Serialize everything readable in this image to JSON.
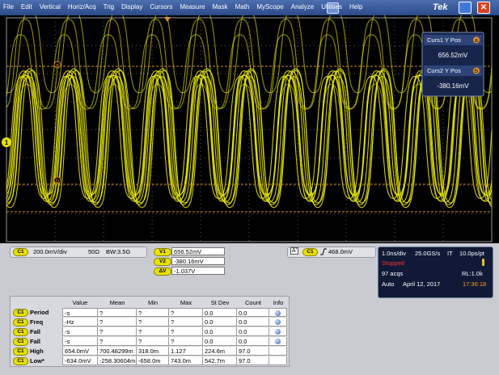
{
  "menu": {
    "items": [
      "File",
      "Edit",
      "Vertical",
      "Horiz/Acq",
      "Trig",
      "Display",
      "Cursors",
      "Measure",
      "Mask",
      "Math",
      "MyScope",
      "Analyze",
      "Utilities",
      "Help"
    ],
    "brand": "Tek"
  },
  "display": {
    "cursor1_marker": "a",
    "cursor2_marker": "b",
    "channel_marker": "1",
    "readout": [
      {
        "label": "Curs1 Y Pos",
        "badge": "a",
        "value": "656.52mV"
      },
      {
        "label": "Curs2 Y Pos",
        "badge": "b",
        "value": "-380.16mV"
      }
    ]
  },
  "channel": {
    "source": "C1",
    "scale": "200.0mV/div",
    "termination": "50Ω",
    "bandwidth": "BW:3.5G"
  },
  "cursors": [
    {
      "label": "V1",
      "value": "656.52mV"
    },
    {
      "label": "V2",
      "value": "-380.16mV"
    },
    {
      "label": "ΔV",
      "value": "-1.037V"
    }
  ],
  "trigger": {
    "mode": "A'",
    "source": "C1",
    "level": "468.0mV"
  },
  "acquisition": {
    "horizontal": "1.0ns/div",
    "sample_rate": "25.0GS/s",
    "mode": "IT",
    "resolution": "10.0ps/pt",
    "state": "Stopped",
    "acqs": "97 acqs",
    "record_length": "RL:1.0k",
    "trigger_mode": "Auto",
    "date": "April 12, 2017",
    "time": "17:36:18"
  },
  "measurements": {
    "columns": [
      "Value",
      "Mean",
      "Min",
      "Max",
      "St Dev",
      "Count",
      "Info"
    ],
    "rows": [
      {
        "source": "C1",
        "name": "Period",
        "cells": [
          "-s",
          "?",
          "?",
          "?",
          "0.0",
          "0.0"
        ]
      },
      {
        "source": "C1",
        "name": "Freq",
        "cells": [
          "-Hz",
          "?",
          "?",
          "?",
          "0.0",
          "0.0"
        ]
      },
      {
        "source": "C1",
        "name": "Fall",
        "cells": [
          "-s",
          "?",
          "?",
          "?",
          "0.0",
          "0.0"
        ]
      },
      {
        "source": "C1",
        "name": "Fall",
        "cells": [
          "-s",
          "?",
          "?",
          "?",
          "0.0",
          "0.0"
        ]
      },
      {
        "source": "C1",
        "name": "High",
        "cells": [
          "654.0mV",
          "700.48299m",
          "318.0m",
          "1.127",
          "224.6m",
          "97.0"
        ]
      },
      {
        "source": "C1",
        "name": "Low*",
        "cells": [
          "-634.0mV",
          "-258.30604m",
          "-658.0m",
          "743.0m",
          "542.7m",
          "97.0"
        ]
      }
    ]
  }
}
